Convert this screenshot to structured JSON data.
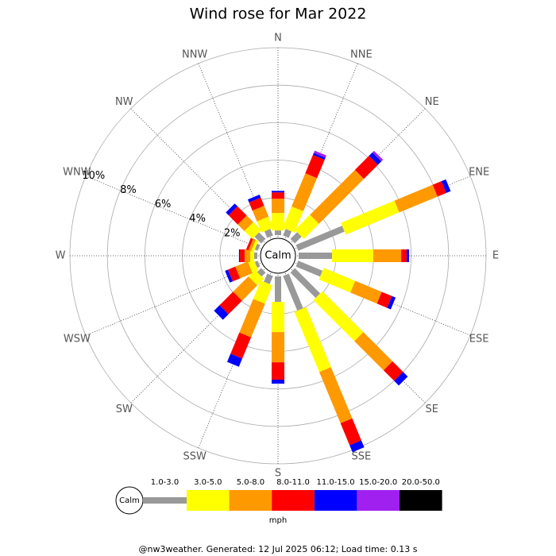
{
  "chart_data": {
    "type": "windrose",
    "title": "Wind rose for Mar 2022",
    "categories": [
      "N",
      "NNE",
      "NE",
      "ENE",
      "E",
      "ESE",
      "SE",
      "SSE",
      "S",
      "SSW",
      "SW",
      "WSW",
      "W",
      "WNW",
      "NW",
      "NNW"
    ],
    "series": [
      {
        "name": "1.0-3.0",
        "color": "#999999",
        "values": [
          0.25,
          0.38,
          0.51,
          2.67,
          1.78,
          1.4,
          1.91,
          2.0,
          1.36,
          0.47,
          0.3,
          0.17,
          0.17,
          0.17,
          0.5,
          0.38
        ]
      },
      {
        "name": "3.0-5.0",
        "color": "#ffff00",
        "values": [
          0.93,
          1.23,
          1.14,
          3.09,
          2.2,
          1.82,
          3.09,
          3.47,
          1.61,
          1.06,
          0.5,
          0.34,
          0.21,
          0.15,
          0.6,
          0.64
        ]
      },
      {
        "name": "5.0-8.0",
        "color": "#ff9900",
        "values": [
          0.76,
          1.91,
          3.39,
          2.21,
          1.49,
          1.53,
          2.2,
          2.96,
          1.61,
          1.94,
          1.15,
          0.72,
          0.3,
          0.15,
          0.5,
          0.63
        ]
      },
      {
        "name": "8.0-11.0",
        "color": "#ff0000",
        "values": [
          0.34,
          1.06,
          1.06,
          0.5,
          0.29,
          0.59,
          0.8,
          1.27,
          0.93,
          1.23,
          1.02,
          0.42,
          0.25,
          0.13,
          0.69,
          0.47
        ]
      },
      {
        "name": "11.0-15.0",
        "color": "#0000ff",
        "values": [
          0.08,
          0.12,
          0.26,
          0.26,
          0.13,
          0.21,
          0.35,
          0.4,
          0.21,
          0.47,
          0.42,
          0.17,
          0.05,
          0,
          0.21,
          0.17
        ]
      },
      {
        "name": "15.0-20.0",
        "color": "#a020f0",
        "values": [
          0,
          0.13,
          0.12,
          0,
          0,
          0,
          0,
          0,
          0,
          0,
          0,
          0,
          0,
          0,
          0,
          0
        ]
      },
      {
        "name": "20.0-50.0",
        "color": "#000000",
        "values": [
          0,
          0,
          0,
          0,
          0,
          0,
          0,
          0,
          0,
          0,
          0,
          0,
          0,
          0,
          0,
          0
        ]
      }
    ],
    "rlim": [
      0,
      10
    ],
    "rticks": [
      {
        "value": 2,
        "label": "2%"
      },
      {
        "value": 4,
        "label": "4%"
      },
      {
        "value": 6,
        "label": "6%"
      },
      {
        "value": 8,
        "label": "8%"
      },
      {
        "value": 10,
        "label": "10%"
      }
    ],
    "calm_label": "Calm",
    "unit": "mph"
  },
  "footer": "@nw3weather.  Generated: 12 Jul 2025 06:12; Load time: 0.13 s"
}
